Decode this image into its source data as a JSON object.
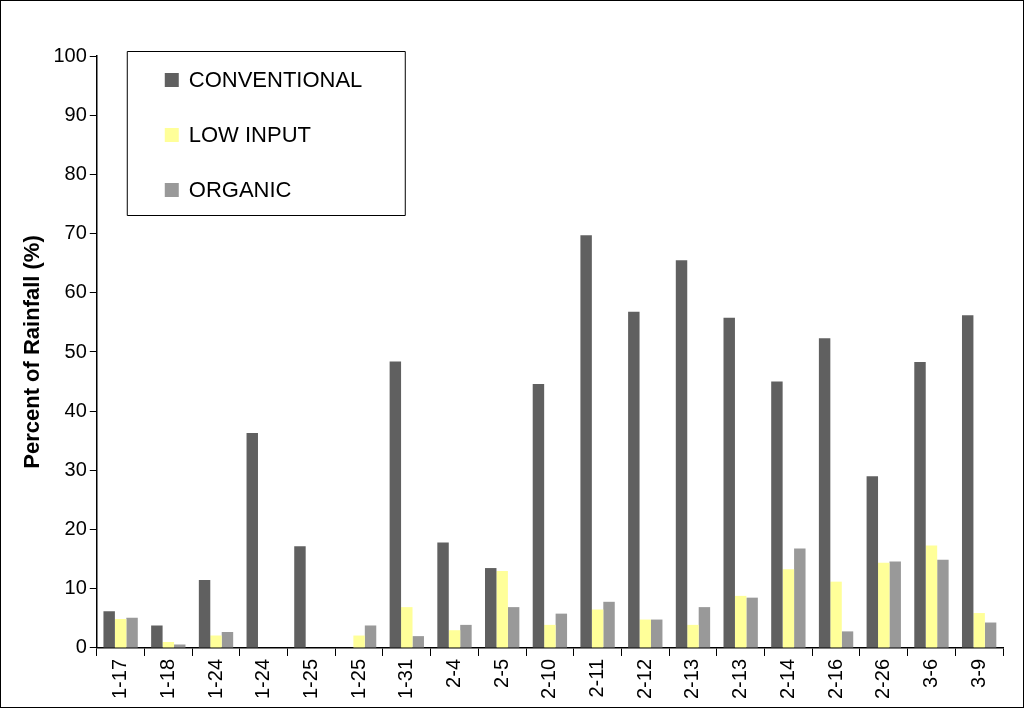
{
  "chart_data": {
    "type": "bar",
    "ylabel": "Percent of Rainfall (%)",
    "categories": [
      "1-17",
      "1-18",
      "1-24",
      "1-24",
      "1-25",
      "1-25",
      "1-31",
      "2-4",
      "2-5",
      "2-10",
      "2-11",
      "2-12",
      "2-13",
      "2-13",
      "2-14",
      "2-16",
      "2-26",
      "3-6",
      "3-9"
    ],
    "series": [
      {
        "name": "CONVENTIONAL",
        "color": "#606060",
        "values": [
          6.2,
          3.8,
          11.5,
          36.3,
          17.2,
          null,
          48.4,
          17.8,
          13.5,
          44.6,
          69.7,
          56.8,
          65.5,
          55.8,
          45,
          52.3,
          29,
          48.3,
          56.2
        ]
      },
      {
        "name": "LOW INPUT",
        "color": "#ffff99",
        "values": [
          4.9,
          1,
          2.1,
          null,
          null,
          2.1,
          6.9,
          3,
          13,
          3.9,
          6.5,
          4.8,
          3.9,
          8.8,
          13.3,
          11.2,
          14.4,
          17.3,
          5.9
        ]
      },
      {
        "name": "ORGANIC",
        "color": "#999999",
        "values": [
          5.1,
          0.6,
          2.7,
          null,
          null,
          3.8,
          2,
          3.9,
          6.9,
          5.8,
          7.8,
          4.8,
          6.9,
          8.5,
          16.8,
          2.8,
          14.6,
          14.9,
          4.3
        ]
      }
    ],
    "ylim": [
      0,
      100
    ],
    "yticks": [
      0,
      10,
      20,
      30,
      40,
      50,
      60,
      70,
      80,
      90,
      100
    ],
    "grid": false,
    "legend": "top left"
  }
}
